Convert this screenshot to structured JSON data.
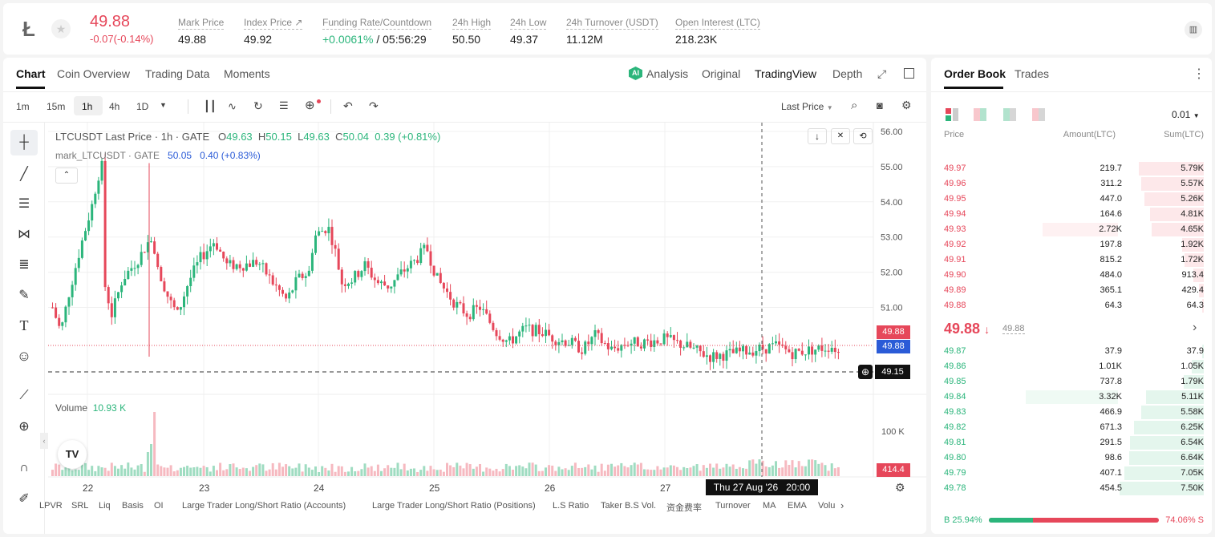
{
  "header": {
    "logo": "Ł",
    "price": "49.88",
    "change": "-0.07(-0.14%)",
    "stats": [
      {
        "label": "Mark Price",
        "value": "49.88"
      },
      {
        "label": "Index Price ↗",
        "value": "49.92"
      },
      {
        "label": "Funding Rate/Countdown",
        "value": "+0.0061%",
        "value2": " / 05:56:29"
      },
      {
        "label": "24h High",
        "value": "50.50"
      },
      {
        "label": "24h Low",
        "value": "49.37"
      },
      {
        "label": "24h Turnover (USDT)",
        "value": "11.12M"
      },
      {
        "label": "Open Interest (LTC)",
        "value": "218.23K"
      }
    ]
  },
  "chart_tabs": [
    "Chart",
    "Coin Overview",
    "Trading Data",
    "Moments"
  ],
  "view_tabs": {
    "analysis": "Analysis",
    "original": "Original",
    "tradingview": "TradingView",
    "depth": "Depth"
  },
  "intervals": [
    "1m",
    "15m",
    "1h",
    "4h",
    "1D"
  ],
  "last_price_sel": "Last Price",
  "legend": {
    "title": "LTCUSDT Last Price · 1h · GATE",
    "o": "O",
    "ov": "49.63",
    "h": "H",
    "hv": "50.15",
    "l": "L",
    "lv": "49.63",
    "c": "C",
    "cv": "50.04",
    "chg": "0.39 (+0.81%)",
    "mark_label": "mark_LTCUSDT · GATE",
    "mark_val": "50.05",
    "mark_chg": "0.40 (+0.83%)"
  },
  "volume": {
    "label": "Volume",
    "value": "10.93 K",
    "axis_tick": "100 K",
    "last": "414.4"
  },
  "price_ticks": [
    "56.00",
    "55.00",
    "54.00",
    "53.00",
    "52.00",
    "51.00"
  ],
  "price_tags": {
    "ask": "49.88",
    "mark": "49.88",
    "cross": "49.15"
  },
  "date_ticks": [
    "22",
    "23",
    "24",
    "25",
    "26",
    "27"
  ],
  "crosshair_date": "Thu 27 Aug '26   20:00",
  "bottom_indicators": [
    "LPVR",
    "SRL",
    "Liq",
    "Basis",
    "OI",
    "Large Trader Long/Short Ratio (Accounts)",
    "Large Trader Long/Short Ratio (Positions)",
    "L.S Ratio",
    "Taker B.S Vol.",
    "资金费率",
    "Turnover",
    "MA",
    "EMA",
    "Volu"
  ],
  "orderbook": {
    "tabs": [
      "Order Book",
      "Trades"
    ],
    "precision": "0.01",
    "cols": [
      "Price",
      "Amount(LTC)",
      "Sum(LTC)"
    ],
    "asks": [
      {
        "p": "49.97",
        "a": "219.7",
        "s": "5.79K"
      },
      {
        "p": "49.96",
        "a": "311.2",
        "s": "5.57K"
      },
      {
        "p": "49.95",
        "a": "447.0",
        "s": "5.26K"
      },
      {
        "p": "49.94",
        "a": "164.6",
        "s": "4.81K"
      },
      {
        "p": "49.93",
        "a": "2.72K",
        "s": "4.65K"
      },
      {
        "p": "49.92",
        "a": "197.8",
        "s": "1.92K"
      },
      {
        "p": "49.91",
        "a": "815.2",
        "s": "1.72K"
      },
      {
        "p": "49.90",
        "a": "484.0",
        "s": "913.4"
      },
      {
        "p": "49.89",
        "a": "365.1",
        "s": "429.4"
      },
      {
        "p": "49.88",
        "a": "64.3",
        "s": "64.3"
      }
    ],
    "last": "49.88",
    "last_arrow": "↓",
    "mark": "49.88",
    "bids": [
      {
        "p": "49.87",
        "a": "37.9",
        "s": "37.9"
      },
      {
        "p": "49.86",
        "a": "1.01K",
        "s": "1.05K"
      },
      {
        "p": "49.85",
        "a": "737.8",
        "s": "1.79K"
      },
      {
        "p": "49.84",
        "a": "3.32K",
        "s": "5.11K"
      },
      {
        "p": "49.83",
        "a": "466.9",
        "s": "5.58K"
      },
      {
        "p": "49.82",
        "a": "671.3",
        "s": "6.25K"
      },
      {
        "p": "49.81",
        "a": "291.5",
        "s": "6.54K"
      },
      {
        "p": "49.80",
        "a": "98.6",
        "s": "6.64K"
      },
      {
        "p": "49.79",
        "a": "407.1",
        "s": "7.05K"
      },
      {
        "p": "49.78",
        "a": "454.5",
        "s": "7.50K"
      }
    ],
    "buy_pct": "B 25.94%",
    "sell_pct": "74.06% S",
    "buy_fraction": 0.2594
  },
  "colors": {
    "up": "#2bb57b",
    "down": "#e6475a",
    "accent": "#222"
  }
}
